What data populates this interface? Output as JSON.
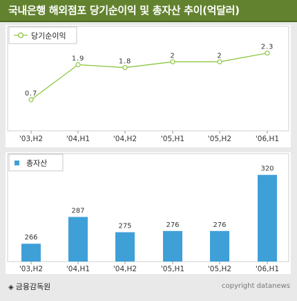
{
  "title": "국내은행 해외점포 당기순이익 및 총자산 추이(억달러)",
  "source": "금융감독원",
  "source_icon": "diamond-icon",
  "copyright": "copyright datanews",
  "colors": {
    "title_bg": "#63822f",
    "line": "#8cc63f",
    "bar": "#3fa0d8"
  },
  "chart_data": [
    {
      "type": "line",
      "legend": "당기순이익",
      "categories": [
        "'03,H2",
        "'04,H1",
        "'04,H2",
        "'05,H1",
        "'05,H2",
        "'06,H1"
      ],
      "values": [
        0.7,
        1.9,
        1.8,
        2,
        2,
        2.3
      ],
      "value_labels": [
        "0.7",
        "1.9",
        "1.8",
        "2",
        "2",
        "2.3"
      ],
      "ylim": [
        0.3,
        2.6
      ],
      "legend_position": "top-left",
      "grid": false
    },
    {
      "type": "bar",
      "legend": "총자산",
      "categories": [
        "'03,H2",
        "'04,H1",
        "'04,H2",
        "'05,H1",
        "'05,H2",
        "'06,H1"
      ],
      "values": [
        266,
        287,
        275,
        276,
        276,
        320
      ],
      "ylim": [
        252,
        328
      ],
      "legend_position": "top-left",
      "grid": false
    }
  ]
}
